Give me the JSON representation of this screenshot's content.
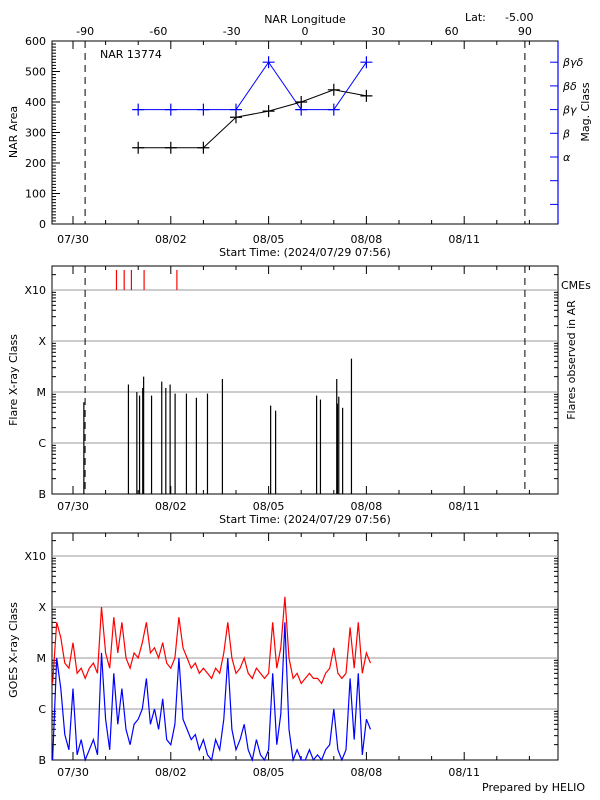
{
  "header": {
    "latitude_label": "Lat:",
    "latitude_value": "-5.00",
    "footer": "Prepared by HELIO"
  },
  "colors": {
    "area": "#000000",
    "mag_class": "#0000ff",
    "cme": "#ff0000",
    "goes_long": "#ff0000",
    "goes_short": "#0000ff",
    "grid": "#999999"
  },
  "chart_data": [
    {
      "type": "line",
      "title": "NAR 13774",
      "xlabel": "Start Time: (2024/07/29 07:56)",
      "ylabel": "NAR Area",
      "y2label": "Mag. Class",
      "top_xlabel": "NAR Longitude",
      "top_x_ticks": [
        "-90",
        "-60",
        "-30",
        "0",
        "30",
        "60",
        "90"
      ],
      "x_ticks": [
        "07/30",
        "08/02",
        "08/05",
        "08/08",
        "08/11"
      ],
      "xlim": [
        "2024-07-29 07:56",
        "2024-08-14 21:00"
      ],
      "ylim": [
        0,
        600
      ],
      "y_ticks": [
        "0",
        "100",
        "200",
        "300",
        "400",
        "500",
        "600"
      ],
      "y2_ticks": [
        "α",
        "β",
        "βγ",
        "βδ",
        "βγδ"
      ],
      "limb_longitudes": [
        -90,
        90
      ],
      "dates": [
        "2024-08-01",
        "2024-08-02",
        "2024-08-03",
        "2024-08-04",
        "2024-08-05",
        "2024-08-06",
        "2024-08-07",
        "2024-08-08"
      ],
      "series": [
        {
          "name": "NAR Area",
          "values": [
            250,
            250,
            250,
            350,
            370,
            400,
            440,
            420
          ]
        },
        {
          "name": "Mag. Class",
          "values": [
            "βγ",
            "βγ",
            "βγ",
            "βγ",
            "βγδ",
            "βγ",
            "βγ",
            "βγδ"
          ]
        }
      ]
    },
    {
      "type": "bar",
      "xlabel": "Start Time: (2024/07/29 07:56)",
      "ylabel": "Flare X-ray Class",
      "y2label": "Flares observed in AR",
      "cme_label": "CMEs",
      "x_ticks": [
        "07/30",
        "08/02",
        "08/05",
        "08/08",
        "08/11"
      ],
      "y_ticks": [
        "B",
        "C",
        "M",
        "X",
        "X10"
      ],
      "y_scale": "log",
      "grid": true,
      "flares": [
        {
          "time": "2024-07-30 08:00",
          "class": "C6.3"
        },
        {
          "time": "2024-07-31 16:48",
          "class": "M1.4"
        },
        {
          "time": "2024-07-31 23:00",
          "class": "M1.0"
        },
        {
          "time": "2024-08-01 01:00",
          "class": "C8.5"
        },
        {
          "time": "2024-08-01 03:20",
          "class": "M1.2"
        },
        {
          "time": "2024-08-01 04:00",
          "class": "M2.0"
        },
        {
          "time": "2024-08-01 09:50",
          "class": "C8.5"
        },
        {
          "time": "2024-08-01 17:20",
          "class": "M1.6"
        },
        {
          "time": "2024-08-01 20:20",
          "class": "M1.2"
        },
        {
          "time": "2024-08-01 23:30",
          "class": "M1.4"
        },
        {
          "time": "2024-08-02 03:10",
          "class": "C9.3"
        },
        {
          "time": "2024-08-02 11:30",
          "class": "C9.3"
        },
        {
          "time": "2024-08-02 18:50",
          "class": "C7.7"
        },
        {
          "time": "2024-08-03 03:00",
          "class": "C9.3"
        },
        {
          "time": "2024-08-03 14:00",
          "class": "M1.8"
        },
        {
          "time": "2024-08-05 01:30",
          "class": "C5.4"
        },
        {
          "time": "2024-08-05 05:10",
          "class": "C4.3"
        },
        {
          "time": "2024-08-06 11:20",
          "class": "C8.5"
        },
        {
          "time": "2024-08-06 14:10",
          "class": "C7.1"
        },
        {
          "time": "2024-08-07 02:10",
          "class": "M1.8"
        },
        {
          "time": "2024-08-07 02:40",
          "class": "C5.9"
        },
        {
          "time": "2024-08-07 03:40",
          "class": "C8.1"
        },
        {
          "time": "2024-08-07 06:30",
          "class": "C4.9"
        },
        {
          "time": "2024-08-07 13:00",
          "class": "M4.5"
        }
      ],
      "cmes": [
        "2024-07-31 08:00",
        "2024-07-31 13:40",
        "2024-07-31 19:00",
        "2024-08-01 04:20",
        "2024-08-02 04:30"
      ]
    },
    {
      "type": "line",
      "ylabel": "GOES X-ray Class",
      "x_ticks": [
        "07/30",
        "08/02",
        "08/05",
        "08/08",
        "08/11"
      ],
      "y_ticks": [
        "B",
        "C",
        "M",
        "X",
        "X10"
      ],
      "y_scale": "log",
      "grid": true,
      "time_start": "2024-07-29 09:00",
      "time_step_hours": 3,
      "series": [
        {
          "color": "red",
          "log10_flux": [
            -5.5,
            -4.3,
            -4.6,
            -5.1,
            -5.2,
            -4.7,
            -5.3,
            -5.2,
            -5.4,
            -5.2,
            -5.1,
            -5.3,
            -4.0,
            -4.9,
            -5.2,
            -4.2,
            -4.9,
            -4.3,
            -5.0,
            -5.2,
            -4.9,
            -5.0,
            -4.7,
            -4.3,
            -4.9,
            -4.8,
            -5.0,
            -4.7,
            -5.1,
            -5.2,
            -5.0,
            -4.2,
            -4.8,
            -5.0,
            -5.2,
            -5.1,
            -5.3,
            -5.2,
            -5.3,
            -5.4,
            -5.2,
            -5.3,
            -4.9,
            -4.3,
            -5.0,
            -5.3,
            -5.2,
            -5.0,
            -5.3,
            -5.4,
            -5.2,
            -5.3,
            -5.4,
            -5.3,
            -4.3,
            -5.2,
            -4.8,
            -3.8,
            -5.0,
            -5.4,
            -5.3,
            -5.5,
            -5.4,
            -5.3,
            -5.4,
            -5.4,
            -5.5,
            -5.3,
            -5.2,
            -4.8,
            -5.3,
            -5.4,
            -5.3,
            -4.4,
            -5.2,
            -4.3,
            -5.3,
            -4.9,
            -5.1
          ]
        },
        {
          "color": "blue",
          "log10_flux": [
            -7.0,
            -5.0,
            -5.6,
            -6.5,
            -6.8,
            -5.6,
            -6.9,
            -6.6,
            -7.0,
            -6.8,
            -6.6,
            -6.9,
            -4.9,
            -6.2,
            -6.8,
            -5.3,
            -6.3,
            -5.6,
            -6.4,
            -6.7,
            -6.3,
            -6.2,
            -6.0,
            -5.4,
            -6.3,
            -6.0,
            -6.4,
            -5.8,
            -6.6,
            -6.7,
            -6.3,
            -5.0,
            -6.2,
            -6.4,
            -6.6,
            -6.5,
            -6.8,
            -6.6,
            -6.9,
            -7.0,
            -6.6,
            -6.8,
            -6.2,
            -5.0,
            -6.4,
            -6.8,
            -6.6,
            -6.3,
            -6.8,
            -7.0,
            -6.6,
            -6.9,
            -7.0,
            -6.8,
            -5.3,
            -6.7,
            -6.1,
            -4.3,
            -6.4,
            -7.0,
            -6.8,
            -7.1,
            -7.0,
            -6.8,
            -7.0,
            -6.9,
            -7.1,
            -6.8,
            -6.7,
            -6.0,
            -6.8,
            -7.0,
            -6.8,
            -5.4,
            -6.6,
            -5.3,
            -6.9,
            -6.2,
            -6.4
          ]
        }
      ]
    }
  ]
}
